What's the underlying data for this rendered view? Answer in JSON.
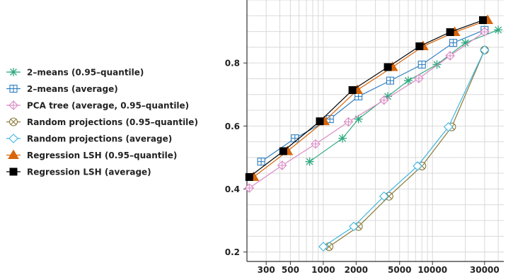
{
  "chart_data": {
    "type": "line",
    "title": "",
    "xlabel": "",
    "ylabel": "",
    "x_scale": "log",
    "xlim": [
      200,
      45000
    ],
    "ylim": [
      0.17,
      1.0
    ],
    "grid": true,
    "legend_position": "left-outside",
    "x_ticks": [
      300,
      500,
      1000,
      2000,
      5000,
      10000,
      30000
    ],
    "x_tick_labels": [
      "300",
      "500",
      "1000",
      "2000",
      "5000",
      "10000",
      "30000"
    ],
    "y_ticks": [
      0.2,
      0.4,
      0.6,
      0.8
    ],
    "y_tick_labels": [
      "0.2",
      "0.4",
      "0.6",
      "0.8"
    ],
    "series": [
      {
        "name": "2–means (0.95–quantile)",
        "marker": "asterisk",
        "color": "#2eaa7e",
        "x": [
          750,
          1500,
          2100,
          3900,
          6000,
          11000,
          20000,
          40000
        ],
        "y": [
          0.487,
          0.561,
          0.622,
          0.694,
          0.744,
          0.795,
          0.864,
          0.905
        ]
      },
      {
        "name": "2–means (average)",
        "marker": "square-plus",
        "color": "#2f7fc1",
        "x": [
          270,
          550,
          1150,
          2100,
          4100,
          8000,
          15500,
          30000
        ],
        "y": [
          0.487,
          0.561,
          0.622,
          0.694,
          0.744,
          0.795,
          0.864,
          0.905
        ]
      },
      {
        "name": "PCA tree (average, 0.95–quantile)",
        "marker": "diamond-plus",
        "color": "#d98ac4",
        "x": [
          210,
          420,
          850,
          1700,
          3600,
          7500,
          14500,
          30000
        ],
        "y": [
          0.403,
          0.475,
          0.543,
          0.613,
          0.682,
          0.751,
          0.823,
          0.899
        ]
      },
      {
        "name": "Random projections (0.95–quantile)",
        "marker": "circle-x",
        "color": "#8a7a3a",
        "x": [
          1130,
          2100,
          4000,
          8000,
          15000,
          30000
        ],
        "y": [
          0.217,
          0.281,
          0.377,
          0.473,
          0.597,
          0.841
        ]
      },
      {
        "name": "Random projections (average)",
        "marker": "diamond",
        "color": "#3fb4e0",
        "x": [
          1000,
          1900,
          3600,
          7300,
          14000,
          30000
        ],
        "y": [
          0.217,
          0.281,
          0.377,
          0.473,
          0.597,
          0.841
        ]
      },
      {
        "name": "Regression LSH (0.95–quantile)",
        "marker": "triangle",
        "color": "#d8650a",
        "x": [
          230,
          470,
          1020,
          2050,
          4300,
          8200,
          16000,
          32000
        ],
        "y": [
          0.438,
          0.52,
          0.615,
          0.714,
          0.787,
          0.853,
          0.898,
          0.936
        ]
      },
      {
        "name": "Regression LSH (average)",
        "marker": "square",
        "color": "#000000",
        "x": [
          210,
          430,
          930,
          1850,
          3900,
          7600,
          14500,
          29000
        ],
        "y": [
          0.438,
          0.52,
          0.615,
          0.714,
          0.787,
          0.853,
          0.898,
          0.936
        ]
      }
    ]
  }
}
